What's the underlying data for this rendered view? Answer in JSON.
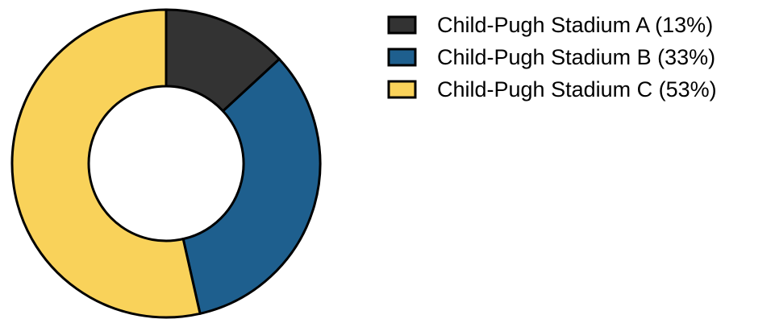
{
  "chart_data": {
    "type": "pie",
    "variant": "donut",
    "title": "",
    "legend_position": "top-right",
    "slices": [
      {
        "label": "Child-Pugh Stadium A (13%)",
        "value": 13,
        "color": "#333333"
      },
      {
        "label": "Child-Pugh Stadium B (33%)",
        "value": 33,
        "color": "#1e5f8e"
      },
      {
        "label": "Child-Pugh Stadium C (53%)",
        "value": 53,
        "color": "#f9d25a"
      }
    ],
    "start_angle": "top",
    "direction": "clockwise"
  }
}
